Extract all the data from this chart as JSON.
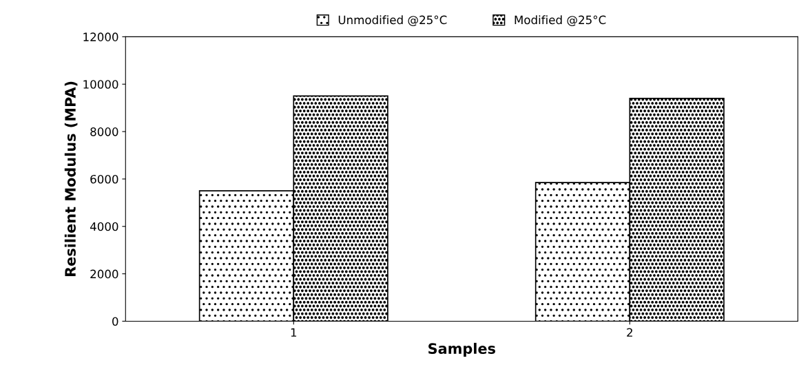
{
  "chart_data": {
    "type": "bar",
    "xlabel": "Samples",
    "ylabel": "Resilient Modulus (MPA)",
    "categories": [
      "1",
      "2"
    ],
    "series": [
      {
        "name": "Unmodified @25°C",
        "color": "#000000",
        "values": [
          5500,
          5850
        ]
      },
      {
        "name": "Modified @25°C",
        "color": "#000000",
        "values": [
          9500,
          9400
        ]
      }
    ],
    "ylim": [
      0,
      12000
    ],
    "yticks": [
      0,
      2000,
      4000,
      6000,
      8000,
      10000,
      12000
    ],
    "grid": false,
    "legend": "top"
  }
}
